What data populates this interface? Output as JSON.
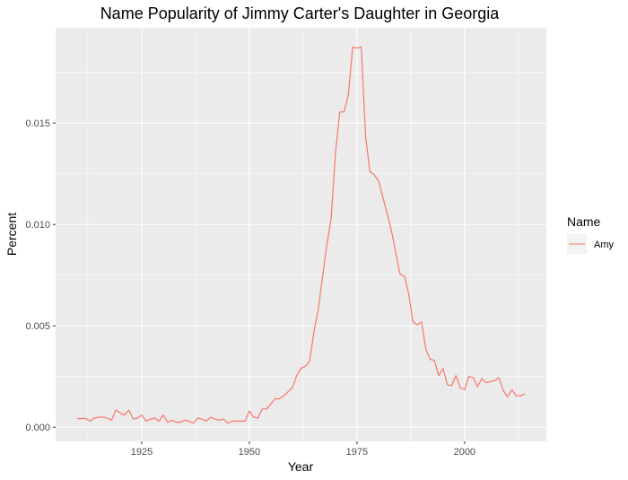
{
  "chart_data": {
    "type": "line",
    "title": "Name Popularity of Jimmy Carter's Daughter in Georgia",
    "xlabel": "Year",
    "ylabel": "Percent",
    "xlim": [
      1905,
      2019
    ],
    "ylim": [
      -0.0007,
      0.0197
    ],
    "x_ticks": [
      1925,
      1950,
      1975,
      2000
    ],
    "x_tick_labels": [
      "1925",
      "1950",
      "1975",
      "2000"
    ],
    "y_ticks": [
      0,
      0.005,
      0.01,
      0.015
    ],
    "y_tick_labels": [
      "0.000",
      "0.005",
      "0.010",
      "0.015"
    ],
    "grid": true,
    "legend": {
      "title": "Name",
      "position": "right"
    },
    "series": [
      {
        "name": "Amy",
        "color": "#F8766D",
        "x": [
          1910,
          1911,
          1912,
          1913,
          1914,
          1915,
          1916,
          1917,
          1918,
          1919,
          1920,
          1921,
          1922,
          1923,
          1924,
          1925,
          1926,
          1927,
          1928,
          1929,
          1930,
          1931,
          1932,
          1933,
          1934,
          1935,
          1936,
          1937,
          1938,
          1939,
          1940,
          1941,
          1942,
          1943,
          1944,
          1945,
          1946,
          1947,
          1948,
          1949,
          1950,
          1951,
          1952,
          1953,
          1954,
          1955,
          1956,
          1957,
          1958,
          1959,
          1960,
          1961,
          1962,
          1963,
          1964,
          1965,
          1966,
          1967,
          1968,
          1969,
          1970,
          1971,
          1972,
          1973,
          1974,
          1975,
          1976,
          1977,
          1978,
          1979,
          1980,
          1981,
          1982,
          1983,
          1984,
          1985,
          1986,
          1987,
          1988,
          1989,
          1990,
          1991,
          1992,
          1993,
          1994,
          1995,
          1996,
          1997,
          1998,
          1999,
          2000,
          2001,
          2002,
          2003,
          2004,
          2005,
          2006,
          2007,
          2008,
          2009,
          2010,
          2011,
          2012,
          2013,
          2014
        ],
        "values": [
          0.00042,
          0.00043,
          0.00043,
          0.0003,
          0.00045,
          0.0005,
          0.0005,
          0.00045,
          0.00035,
          0.00085,
          0.0007,
          0.0006,
          0.00085,
          0.0004,
          0.00045,
          0.0006,
          0.0003,
          0.0004,
          0.00045,
          0.0003,
          0.0006,
          0.00025,
          0.00035,
          0.00025,
          0.00025,
          0.00035,
          0.0003,
          0.0002,
          0.00045,
          0.0004,
          0.0003,
          0.0005,
          0.0004,
          0.00035,
          0.0004,
          0.0002,
          0.0003,
          0.0003,
          0.0003,
          0.0003,
          0.0008,
          0.0005,
          0.00045,
          0.0009,
          0.0009,
          0.00115,
          0.0014,
          0.0014,
          0.00155,
          0.00175,
          0.00195,
          0.00255,
          0.0029,
          0.003,
          0.00325,
          0.0047,
          0.0058,
          0.0074,
          0.009,
          0.0103,
          0.0135,
          0.01555,
          0.01555,
          0.0164,
          0.01875,
          0.0187,
          0.01875,
          0.01435,
          0.0126,
          0.01245,
          0.01215,
          0.01135,
          0.01055,
          0.0097,
          0.0086,
          0.00755,
          0.00745,
          0.0066,
          0.0052,
          0.00505,
          0.0052,
          0.00385,
          0.00335,
          0.0033,
          0.00255,
          0.0029,
          0.0021,
          0.00205,
          0.00255,
          0.00195,
          0.00185,
          0.0025,
          0.00245,
          0.002,
          0.0024,
          0.0022,
          0.00225,
          0.0023,
          0.00245,
          0.0018,
          0.0015,
          0.00185,
          0.00155,
          0.00155,
          0.00165
        ]
      }
    ]
  }
}
